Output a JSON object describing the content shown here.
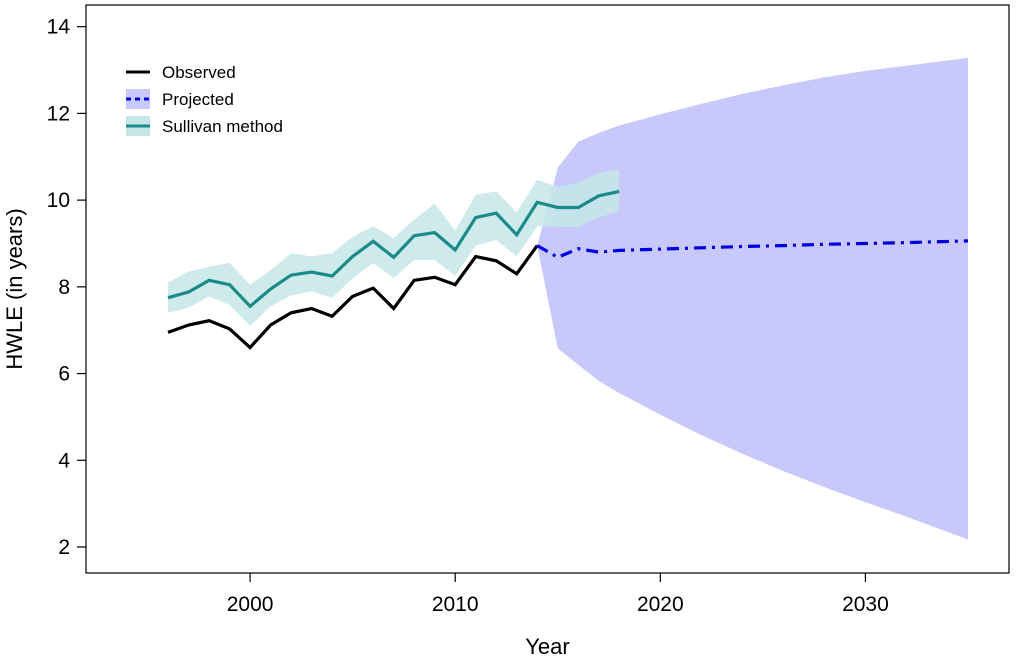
{
  "chart_data": {
    "type": "line",
    "xlabel": "Year",
    "ylabel": "HWLE (in years)",
    "xlim": [
      1992,
      2037
    ],
    "ylim": [
      1.4,
      14.5
    ],
    "x_ticks": [
      2000,
      2010,
      2020,
      2030
    ],
    "y_ticks": [
      2,
      4,
      6,
      8,
      10,
      12,
      14
    ],
    "grid": false,
    "legend_position": "top-left",
    "legend": [
      {
        "label": "Observed",
        "style": "solid",
        "color": "#000000"
      },
      {
        "label": "Projected",
        "style": "dashed",
        "color": "#0000dd",
        "band_color": "#c8c8fa"
      },
      {
        "label": "Sullivan method",
        "style": "solid",
        "color": "#1a8a8a",
        "band_color": "#c6e6e6"
      }
    ],
    "series": [
      {
        "name": "Observed",
        "color": "#000000",
        "x": [
          1996,
          1997,
          1998,
          1999,
          2000,
          2001,
          2002,
          2003,
          2004,
          2005,
          2006,
          2007,
          2008,
          2009,
          2010,
          2011,
          2012,
          2013,
          2014
        ],
        "values": [
          6.95,
          7.12,
          7.22,
          7.03,
          6.6,
          7.12,
          7.4,
          7.5,
          7.32,
          7.78,
          7.97,
          7.5,
          8.15,
          8.22,
          8.05,
          8.7,
          8.6,
          8.3,
          8.95
        ]
      },
      {
        "name": "Projected",
        "color": "#0000dd",
        "band_color": "#c8c8fa",
        "x": [
          2014,
          2015,
          2016,
          2017,
          2018,
          2020,
          2022,
          2024,
          2026,
          2028,
          2030,
          2032,
          2035
        ],
        "values": [
          8.95,
          8.68,
          8.88,
          8.8,
          8.84,
          8.87,
          8.9,
          8.93,
          8.95,
          8.98,
          9.0,
          9.02,
          9.06
        ],
        "lower": [
          8.95,
          6.58,
          6.2,
          5.83,
          5.55,
          5.05,
          4.58,
          4.15,
          3.75,
          3.38,
          3.03,
          2.7,
          2.17
        ],
        "upper": [
          8.95,
          10.75,
          11.35,
          11.55,
          11.72,
          11.98,
          12.22,
          12.45,
          12.65,
          12.83,
          12.98,
          13.1,
          13.28
        ]
      },
      {
        "name": "Sullivan method",
        "color": "#1a8a8a",
        "band_color": "#c6e6e6",
        "x": [
          1996,
          1997,
          1998,
          1999,
          2000,
          2001,
          2002,
          2003,
          2004,
          2005,
          2006,
          2007,
          2008,
          2009,
          2010,
          2011,
          2012,
          2013,
          2014,
          2015,
          2016,
          2017,
          2018
        ],
        "values": [
          7.75,
          7.88,
          8.15,
          8.05,
          7.55,
          7.95,
          8.27,
          8.34,
          8.25,
          8.7,
          9.05,
          8.68,
          9.18,
          9.25,
          8.85,
          9.6,
          9.7,
          9.2,
          9.95,
          9.83,
          9.83,
          10.1,
          10.2
        ],
        "lower": [
          7.4,
          7.52,
          7.78,
          7.58,
          7.1,
          7.55,
          7.8,
          7.9,
          7.75,
          8.2,
          8.55,
          8.2,
          8.62,
          8.62,
          8.25,
          8.95,
          9.08,
          8.7,
          9.4,
          9.38,
          9.38,
          9.6,
          9.75
        ],
        "upper": [
          8.1,
          8.35,
          8.47,
          8.55,
          8.05,
          8.38,
          8.78,
          8.7,
          8.78,
          9.15,
          9.4,
          9.12,
          9.55,
          9.92,
          9.3,
          10.12,
          10.2,
          9.72,
          10.47,
          10.3,
          10.4,
          10.62,
          10.72
        ]
      }
    ]
  }
}
